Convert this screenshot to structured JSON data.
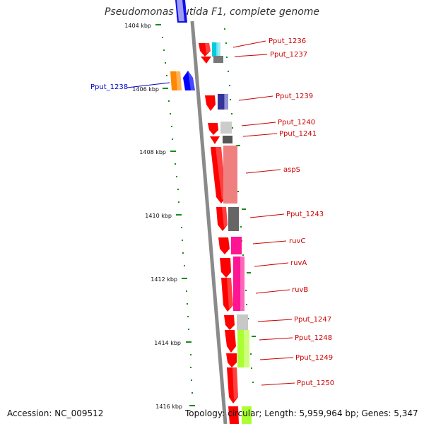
{
  "title": "Pseudomonas putida F1, complete genome",
  "footer": {
    "accession": "Accession: NC_009512",
    "summary": "Topology: circular; Length: 5,959,964 bp; Genes: 5,347"
  },
  "colors": {
    "backbone": "#8a8a8a",
    "tick": "#1a8a1a",
    "gene_label": "#cc0000",
    "highlight_label": "#0000cc"
  },
  "ruler_labels": [
    "1404 kbp",
    "1406 kbp",
    "1408 kbp",
    "1410 kbp",
    "1412 kbp",
    "1414 kbp",
    "1416 kbp"
  ],
  "gene_labels": [
    "Pput_1236",
    "Pput_1237",
    "Pput_1238",
    "Pput_1239",
    "Pput_1240",
    "Pput_1241",
    "aspS",
    "Pput_1243",
    "ruvC",
    "ruvA",
    "ruvB",
    "Pput_1247",
    "Pput_1248",
    "Pput_1249",
    "Pput_1250"
  ],
  "genes": [
    {
      "name": "Pput_1236",
      "strand": "+",
      "color": "#ff0000"
    },
    {
      "name": "Pput_1237",
      "strand": "+",
      "color": "#ff0000"
    },
    {
      "name": "Pput_1238",
      "strand": "-",
      "color": "#0000ff"
    },
    {
      "name": "Pput_1239",
      "strand": "+",
      "color": "#ff0000"
    },
    {
      "name": "Pput_1240",
      "strand": "+",
      "color": "#ff0000"
    },
    {
      "name": "Pput_1241",
      "strand": "+",
      "color": "#ff0000"
    },
    {
      "name": "aspS",
      "strand": "+",
      "color": "#ff0000"
    },
    {
      "name": "Pput_1243",
      "strand": "+",
      "color": "#ff0000"
    },
    {
      "name": "ruvC",
      "strand": "+",
      "color": "#ff0000"
    },
    {
      "name": "ruvA",
      "strand": "+",
      "color": "#ff0000"
    },
    {
      "name": "ruvB",
      "strand": "+",
      "color": "#ff0000"
    },
    {
      "name": "Pput_1247",
      "strand": "+",
      "color": "#ff0000"
    },
    {
      "name": "Pput_1248",
      "strand": "+",
      "color": "#ff0000"
    },
    {
      "name": "Pput_1249",
      "strand": "+",
      "color": "#ff0000"
    },
    {
      "name": "Pput_1250",
      "strand": "+",
      "color": "#ff0000"
    }
  ],
  "category_colors": [
    "#00ccdd",
    "#777777",
    "#ff8800",
    "#333399",
    "#cccccc",
    "#555555",
    "#f08080",
    "#666666",
    "#ff1493",
    "#ff1493",
    "#ff1493",
    "#c8c8c8",
    "#aaff33",
    "#aaff33",
    "#aaff33"
  ]
}
